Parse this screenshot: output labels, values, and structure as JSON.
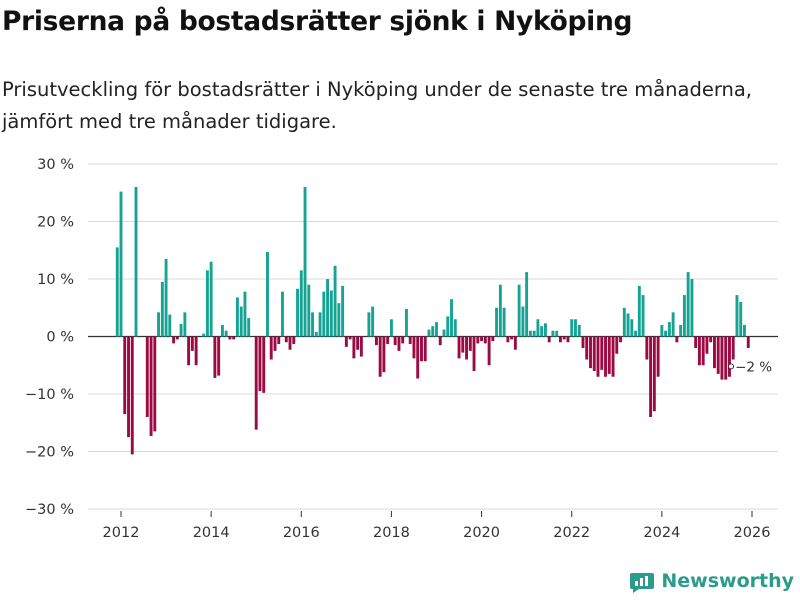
{
  "header": {
    "title": "Priserna på bostadsrätter sjönk i Nyköping",
    "subtitle": "Prisutveckling för bostadsrätter i Nyköping under de senaste tre månaderna, jämfört med tre månader tidigare."
  },
  "brand": {
    "name": "Newsworthy"
  },
  "colors": {
    "positive": "#16a394",
    "negative": "#9b0a42",
    "grid": "#d9d9d9",
    "axis": "#333333",
    "label": "#333333"
  },
  "chart_data": {
    "type": "bar",
    "title": "Priserna på bostadsrätter sjönk i Nyköping",
    "xlabel": "",
    "ylabel": "",
    "ylim": [
      -30,
      30
    ],
    "yticks": [
      -30,
      -20,
      -10,
      0,
      10,
      20,
      30
    ],
    "ytick_labels": [
      "−30 %",
      "−20 %",
      "−10 %",
      "0 %",
      "10 %",
      "20 %",
      "30 %"
    ],
    "xlim": [
      2011.2,
      2027.0
    ],
    "xticks": [
      2012,
      2014,
      2016,
      2018,
      2020,
      2022,
      2024,
      2026
    ],
    "xtick_labels": [
      "2012",
      "2014",
      "2016",
      "2018",
      "2020",
      "2022",
      "2024",
      "2026"
    ],
    "grid": true,
    "annotation": {
      "x": 2025.58,
      "y": -2,
      "label": "−2 %"
    },
    "x": [
      2011.917,
      2012.0,
      2012.083,
      2012.167,
      2012.25,
      2012.333,
      2012.417,
      2012.5,
      2012.583,
      2012.667,
      2012.75,
      2012.833,
      2012.917,
      2013.0,
      2013.083,
      2013.167,
      2013.25,
      2013.333,
      2013.417,
      2013.5,
      2013.583,
      2013.667,
      2013.75,
      2013.833,
      2013.917,
      2014.0,
      2014.083,
      2014.167,
      2014.25,
      2014.333,
      2014.417,
      2014.5,
      2014.583,
      2014.667,
      2014.75,
      2014.833,
      2014.917,
      2015.0,
      2015.083,
      2015.167,
      2015.25,
      2015.333,
      2015.417,
      2015.5,
      2015.583,
      2015.667,
      2015.75,
      2015.833,
      2015.917,
      2016.0,
      2016.083,
      2016.167,
      2016.25,
      2016.333,
      2016.417,
      2016.5,
      2016.583,
      2016.667,
      2016.75,
      2016.833,
      2016.917,
      2017.0,
      2017.083,
      2017.167,
      2017.25,
      2017.333,
      2017.417,
      2017.5,
      2017.583,
      2017.667,
      2017.75,
      2017.833,
      2017.917,
      2018.0,
      2018.083,
      2018.167,
      2018.25,
      2018.333,
      2018.417,
      2018.5,
      2018.583,
      2018.667,
      2018.75,
      2018.833,
      2018.917,
      2019.0,
      2019.083,
      2019.167,
      2019.25,
      2019.333,
      2019.417,
      2019.5,
      2019.583,
      2019.667,
      2019.75,
      2019.833,
      2019.917,
      2020.0,
      2020.083,
      2020.167,
      2020.25,
      2020.333,
      2020.417,
      2020.5,
      2020.583,
      2020.667,
      2020.75,
      2020.833,
      2020.917,
      2021.0,
      2021.083,
      2021.167,
      2021.25,
      2021.333,
      2021.417,
      2021.5,
      2021.583,
      2021.667,
      2021.75,
      2021.833,
      2021.917,
      2022.0,
      2022.083,
      2022.167,
      2022.25,
      2022.333,
      2022.417,
      2022.5,
      2022.583,
      2022.667,
      2022.75,
      2022.833,
      2022.917,
      2023.0,
      2023.083,
      2023.167,
      2023.25,
      2023.333,
      2023.417,
      2023.5,
      2023.583,
      2023.667,
      2023.75,
      2023.833,
      2023.917,
      2024.0,
      2024.083,
      2024.167,
      2024.25,
      2024.333,
      2024.417,
      2024.5,
      2024.583,
      2024.667,
      2024.75,
      2024.833,
      2024.917,
      2025.0,
      2025.083,
      2025.167,
      2025.25,
      2025.333,
      2025.417,
      2025.5,
      2025.583,
      2025.667,
      2025.75,
      2025.833,
      2025.917
    ],
    "values": [
      15.5,
      25.2,
      -13.5,
      -17.5,
      -20.5,
      26.0,
      0,
      0,
      -14.0,
      -17.3,
      -16.5,
      4.2,
      9.5,
      13.5,
      3.8,
      -1.2,
      -0.5,
      2.2,
      4.2,
      -5.0,
      -2.5,
      -5.0,
      0,
      0.5,
      11.5,
      13.0,
      -7.2,
      -6.8,
      2.0,
      1.0,
      -0.5,
      -0.5,
      6.8,
      5.2,
      7.8,
      3.2,
      0,
      -16.2,
      -9.5,
      -9.8,
      14.7,
      -4.0,
      -2.5,
      -1.3,
      7.8,
      -1.0,
      -2.3,
      -1.3,
      8.3,
      11.5,
      26.0,
      9.0,
      4.2,
      0.8,
      4.2,
      7.8,
      10.0,
      8.0,
      12.3,
      5.8,
      8.8,
      -1.8,
      -0.5,
      -3.8,
      -2.3,
      -3.5,
      0,
      4.2,
      5.2,
      -1.5,
      -7.0,
      -6.2,
      -1.3,
      3.0,
      -1.5,
      -2.5,
      -1.2,
      4.8,
      -1.3,
      -3.8,
      -7.3,
      -4.3,
      -4.3,
      1.2,
      1.8,
      2.5,
      -1.5,
      1.2,
      3.5,
      6.5,
      3.0,
      -3.8,
      -2.8,
      -4.0,
      -2.5,
      -6.0,
      -1.2,
      -0.8,
      -1.2,
      -5.0,
      -0.8,
      5.0,
      9.0,
      5.0,
      -1.0,
      -0.5,
      -2.3,
      9.0,
      5.2,
      11.2,
      1.0,
      1.0,
      3.0,
      1.8,
      2.3,
      -1.0,
      1.0,
      1.0,
      -1.0,
      -0.5,
      -1.0,
      3.0,
      3.0,
      2.0,
      -2.0,
      -4.0,
      -5.5,
      -6.0,
      -7.0,
      -5.8,
      -7.0,
      -6.5,
      -7.0,
      -3.0,
      -1.0,
      5.0,
      4.0,
      3.0,
      1.0,
      8.8,
      7.2,
      -4.0,
      -14.0,
      -13.0,
      -7.0,
      2.0,
      1.0,
      2.5,
      4.2,
      -1.0,
      2.0,
      7.2,
      11.2,
      10.0,
      -2.0,
      -5.0,
      -5.0,
      -3.0,
      -1.0,
      -5.5,
      -6.5,
      -7.5,
      -7.5,
      -7.0,
      -4.0,
      7.2,
      6.0,
      2.0,
      -2.0
    ]
  }
}
